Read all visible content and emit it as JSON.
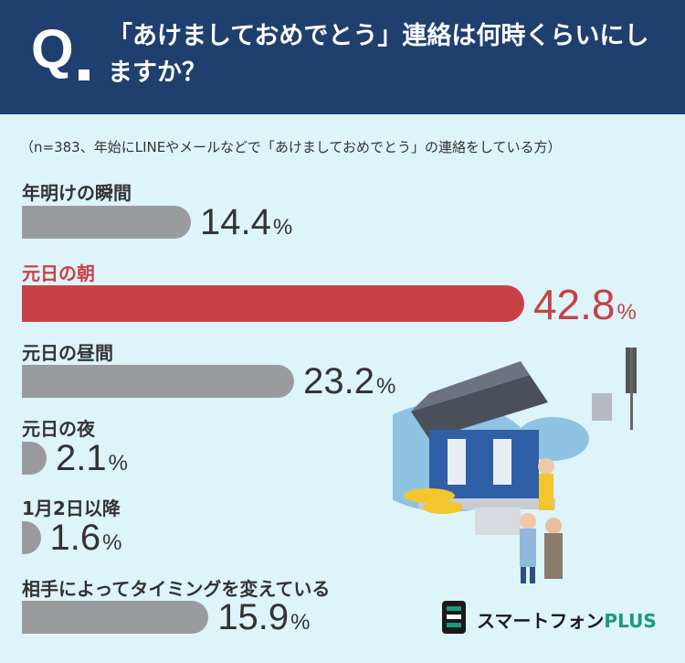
{
  "header": {
    "q_mark": "Q",
    "title": "「あけましておめでとう」連絡は何時くらいにしますか？"
  },
  "note": "（n=383、年始にLINEやメールなどで「あけましておめでとう」の連絡をしている方）",
  "colors": {
    "header_bg": "#1f3f6e",
    "bar": "#9a9b9e",
    "highlight": "#c84146",
    "background": "#ddf4f9"
  },
  "chart_data": {
    "type": "bar",
    "orientation": "horizontal",
    "categories": [
      "年明けの瞬間",
      "元日の朝",
      "元日の昼間",
      "元日の夜",
      "1月2日以降",
      "相手によってタイミングを変えている"
    ],
    "values": [
      14.4,
      42.8,
      23.2,
      2.1,
      1.6,
      15.9
    ],
    "value_labels": [
      "14.4",
      "42.8",
      "23.2",
      "2.1",
      "1.6",
      "15.9"
    ],
    "unit": "%",
    "highlight_index": 1
  },
  "logo": {
    "name": "スマートフォン",
    "suffix": "PLUS"
  }
}
